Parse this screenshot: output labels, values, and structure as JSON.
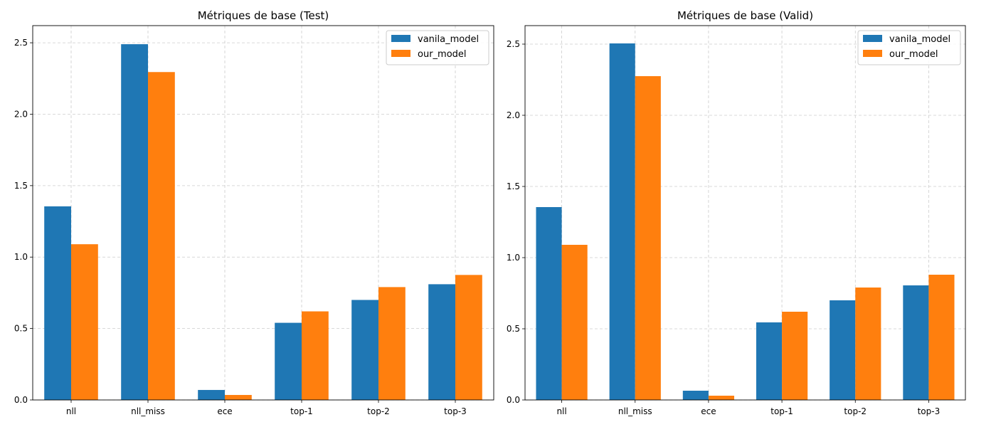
{
  "chart_data": [
    {
      "type": "bar",
      "title": "Métriques de base (Test)",
      "xlabel": "",
      "ylabel": "",
      "categories": [
        "nll",
        "nll_miss",
        "ece",
        "top-1",
        "top-2",
        "top-3"
      ],
      "series": [
        {
          "name": "vanila_model",
          "color": "#1f77b4",
          "values": [
            1.355,
            2.49,
            0.07,
            0.54,
            0.7,
            0.81
          ]
        },
        {
          "name": "our_model",
          "color": "#ff7f0e",
          "values": [
            1.09,
            2.295,
            0.035,
            0.62,
            0.79,
            0.875
          ]
        }
      ],
      "ylim": [
        0,
        2.62
      ],
      "yticks": [
        0.0,
        0.5,
        1.0,
        1.5,
        2.0,
        2.5
      ],
      "ytick_labels": [
        "0.0",
        "0.5",
        "1.0",
        "1.5",
        "2.0",
        "2.5"
      ],
      "grid": true,
      "legend_position": "top-right"
    },
    {
      "type": "bar",
      "title": "Métriques de base (Valid)",
      "xlabel": "",
      "ylabel": "",
      "categories": [
        "nll",
        "nll_miss",
        "ece",
        "top-1",
        "top-2",
        "top-3"
      ],
      "series": [
        {
          "name": "vanila_model",
          "color": "#1f77b4",
          "values": [
            1.355,
            2.505,
            0.065,
            0.545,
            0.7,
            0.805
          ]
        },
        {
          "name": "our_model",
          "color": "#ff7f0e",
          "values": [
            1.09,
            2.275,
            0.03,
            0.62,
            0.79,
            0.88
          ]
        }
      ],
      "ylim": [
        0,
        2.63
      ],
      "yticks": [
        0.0,
        0.5,
        1.0,
        1.5,
        2.0,
        2.5
      ],
      "ytick_labels": [
        "0.0",
        "0.5",
        "1.0",
        "1.5",
        "2.0",
        "2.5"
      ],
      "grid": true,
      "legend_position": "top-right"
    }
  ]
}
